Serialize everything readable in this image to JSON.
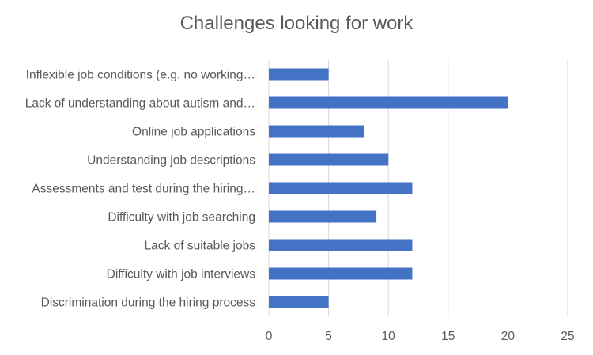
{
  "chart_data": {
    "type": "bar",
    "orientation": "horizontal",
    "title": "Challenges looking for work",
    "xlabel": "",
    "ylabel": "",
    "categories": [
      "Inflexible job conditions (e.g. no working…",
      "Lack of understanding about autism and…",
      "Online job applications",
      "Understanding job descriptions",
      "Assessments and test during the hiring…",
      "Difficulty with job searching",
      "Lack of suitable jobs",
      "Difficulty with job interviews",
      "Discrimination during the hiring process"
    ],
    "values": [
      5,
      20,
      8,
      10,
      12,
      9,
      12,
      12,
      5
    ],
    "xlim": [
      0,
      25
    ],
    "xticks": [
      "0",
      "5",
      "10",
      "15",
      "20",
      "25"
    ],
    "grid": "vertical",
    "bar_color": "#4472C4",
    "grid_color": "#D9D9D9",
    "legend": "none"
  }
}
